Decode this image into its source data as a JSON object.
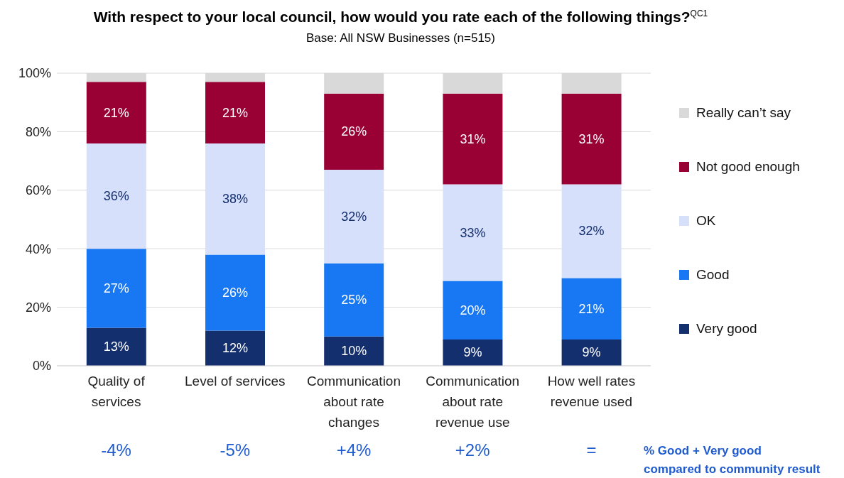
{
  "chart_data": {
    "type": "bar",
    "stacked": true,
    "title": "With respect to your local council, how would you rate each of the following things?$^{QC1}$",
    "subtitle": "Base: All NSW Businesses (n=515)",
    "categories": [
      "Quality of services",
      "Level of services",
      "Communication about rate changes",
      "Communication about rate revenue use",
      "How well rates revenue used"
    ],
    "series": [
      {
        "name": "Very good",
        "color": "#142f6e",
        "values": [
          13,
          12,
          10,
          9,
          9
        ],
        "value_labels": [
          "13%",
          "12%",
          "10%",
          "9%",
          "9%"
        ]
      },
      {
        "name": "Good",
        "color": "#1877f2",
        "values": [
          27,
          26,
          25,
          20,
          21
        ],
        "value_labels": [
          "27%",
          "26%",
          "25%",
          "20%",
          "21%"
        ]
      },
      {
        "name": "OK",
        "color": "#d6e0fb",
        "values": [
          36,
          38,
          32,
          33,
          32
        ],
        "value_labels": [
          "36%",
          "38%",
          "32%",
          "33%",
          "32%"
        ]
      },
      {
        "name": "Not good enough",
        "color": "#990033",
        "values": [
          21,
          21,
          26,
          31,
          31
        ],
        "value_labels": [
          "21%",
          "21%",
          "26%",
          "31%",
          "31%"
        ]
      },
      {
        "name": "Really can’t say",
        "color": "#d9d9d9",
        "values": [
          3,
          3,
          7,
          7,
          7
        ]
      }
    ],
    "ylim": [
      0,
      100
    ],
    "yticks": [
      {
        "value": 0,
        "label": "0%"
      },
      {
        "value": 20,
        "label": "20%"
      },
      {
        "value": 40,
        "label": "40%"
      },
      {
        "value": 60,
        "label": "60%"
      },
      {
        "value": 80,
        "label": "80%"
      },
      {
        "value": 100,
        "label": "100%"
      }
    ],
    "grid": "y",
    "legend": "right",
    "annotations": [
      "-4%",
      "-5%",
      "+4%",
      "+2%",
      "=",
      "% Good + Very good\ncompared to community result"
    ]
  }
}
